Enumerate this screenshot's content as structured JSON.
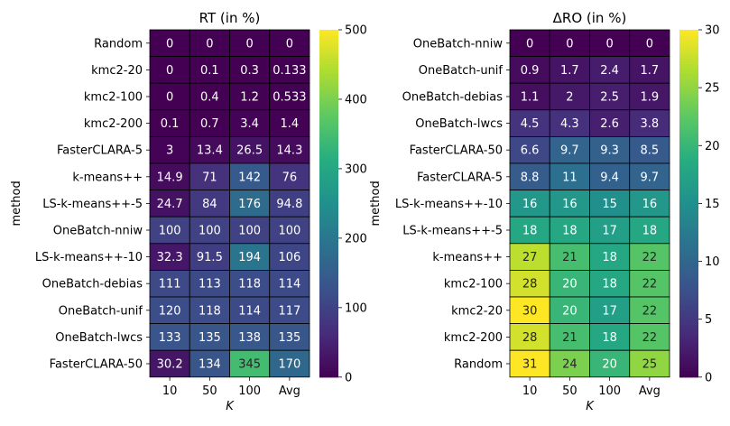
{
  "chart_data": [
    {
      "type": "heatmap",
      "title": "RT (in %)",
      "xlabel": "K",
      "ylabel": "method",
      "x_categories": [
        "10",
        "50",
        "100",
        "Avg"
      ],
      "y_categories": [
        "Random",
        "kmc2-20",
        "kmc2-100",
        "kmc2-200",
        "FasterCLARA-5",
        "k-means++",
        "LS-k-means++-5",
        "OneBatch-nniw",
        "LS-k-means++-10",
        "OneBatch-debias",
        "OneBatch-unif",
        "OneBatch-lwcs",
        "FasterCLARA-50"
      ],
      "values": [
        [
          0,
          0,
          0,
          0
        ],
        [
          0,
          0.1,
          0.3,
          0.133
        ],
        [
          0,
          0.4,
          1.2,
          0.533
        ],
        [
          0.1,
          0.7,
          3.4,
          1.4
        ],
        [
          3,
          13.4,
          26.5,
          14.3
        ],
        [
          14.9,
          71,
          142,
          76
        ],
        [
          24.7,
          84,
          176,
          94.8
        ],
        [
          100,
          100,
          100,
          100
        ],
        [
          32.3,
          91.5,
          194,
          106
        ],
        [
          111,
          113,
          118,
          114
        ],
        [
          120,
          118,
          114,
          117
        ],
        [
          133,
          135,
          138,
          135
        ],
        [
          30.2,
          134,
          345,
          170
        ]
      ],
      "labels": [
        [
          "0",
          "0",
          "0",
          "0"
        ],
        [
          "0",
          "0.1",
          "0.3",
          "0.133"
        ],
        [
          "0",
          "0.4",
          "1.2",
          "0.533"
        ],
        [
          "0.1",
          "0.7",
          "3.4",
          "1.4"
        ],
        [
          "3",
          "13.4",
          "26.5",
          "14.3"
        ],
        [
          "14.9",
          "71",
          "142",
          "76"
        ],
        [
          "24.7",
          "84",
          "176",
          "94.8"
        ],
        [
          "100",
          "100",
          "100",
          "100"
        ],
        [
          "32.3",
          "91.5",
          "194",
          "106"
        ],
        [
          "111",
          "113",
          "118",
          "114"
        ],
        [
          "120",
          "118",
          "114",
          "117"
        ],
        [
          "133",
          "135",
          "138",
          "135"
        ],
        [
          "30.2",
          "134",
          "345",
          "170"
        ]
      ],
      "colormap": "viridis",
      "vmin": 0,
      "vmax": 500,
      "colorbar_ticks": [
        "0",
        "100",
        "200",
        "300",
        "400",
        "500"
      ]
    },
    {
      "type": "heatmap",
      "title": "ΔRO (in %)",
      "xlabel": "K",
      "ylabel": "method",
      "x_categories": [
        "10",
        "50",
        "100",
        "Avg"
      ],
      "y_categories": [
        "OneBatch-nniw",
        "OneBatch-unif",
        "OneBatch-debias",
        "OneBatch-lwcs",
        "FasterCLARA-50",
        "FasterCLARA-5",
        "LS-k-means++-10",
        "LS-k-means++-5",
        "k-means++",
        "kmc2-100",
        "kmc2-20",
        "kmc2-200",
        "Random"
      ],
      "values": [
        [
          0,
          0,
          0,
          0
        ],
        [
          0.9,
          1.7,
          2.4,
          1.7
        ],
        [
          1.1,
          2,
          2.5,
          1.9
        ],
        [
          4.5,
          4.3,
          2.6,
          3.8
        ],
        [
          6.6,
          9.7,
          9.3,
          8.5
        ],
        [
          8.8,
          11,
          9.4,
          9.7
        ],
        [
          16,
          16,
          15,
          16
        ],
        [
          18,
          18,
          17,
          18
        ],
        [
          27,
          21,
          18,
          22
        ],
        [
          28,
          20,
          18,
          22
        ],
        [
          30,
          20,
          17,
          22
        ],
        [
          28,
          21,
          18,
          22
        ],
        [
          31,
          24,
          20,
          25
        ]
      ],
      "labels": [
        [
          "0",
          "0",
          "0",
          "0"
        ],
        [
          "0.9",
          "1.7",
          "2.4",
          "1.7"
        ],
        [
          "1.1",
          "2",
          "2.5",
          "1.9"
        ],
        [
          "4.5",
          "4.3",
          "2.6",
          "3.8"
        ],
        [
          "6.6",
          "9.7",
          "9.3",
          "8.5"
        ],
        [
          "8.8",
          "11",
          "9.4",
          "9.7"
        ],
        [
          "16",
          "16",
          "15",
          "16"
        ],
        [
          "18",
          "18",
          "17",
          "18"
        ],
        [
          "27",
          "21",
          "18",
          "22"
        ],
        [
          "28",
          "20",
          "18",
          "22"
        ],
        [
          "30",
          "20",
          "17",
          "22"
        ],
        [
          "28",
          "21",
          "18",
          "22"
        ],
        [
          "31",
          "24",
          "20",
          "25"
        ]
      ],
      "colormap": "viridis",
      "vmin": 0,
      "vmax": 30,
      "colorbar_ticks": [
        "0",
        "5",
        "10",
        "15",
        "20",
        "25",
        "30"
      ]
    }
  ]
}
